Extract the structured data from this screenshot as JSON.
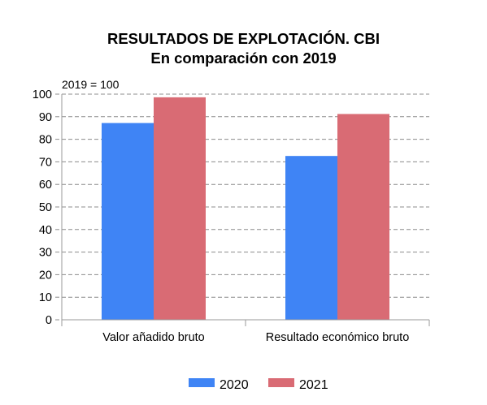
{
  "chart_data": {
    "type": "bar",
    "title": [
      "RESULTADOS DE EXPLOTACIÓN. CBI",
      "En comparación con 2019"
    ],
    "note": "2019 = 100",
    "categories": [
      "Valor añadido bruto",
      "Resultado económico bruto"
    ],
    "series": [
      {
        "name": "2020",
        "values": [
          87.2,
          72.6
        ],
        "color": "#3f84f5"
      },
      {
        "name": "2021",
        "values": [
          98.6,
          91.2
        ],
        "color": "#d96b74"
      }
    ],
    "ylim": [
      0,
      100
    ],
    "yticks": [
      0,
      10,
      20,
      30,
      40,
      50,
      60,
      70,
      80,
      90,
      100
    ],
    "grid": true,
    "legend_position": "bottom"
  }
}
